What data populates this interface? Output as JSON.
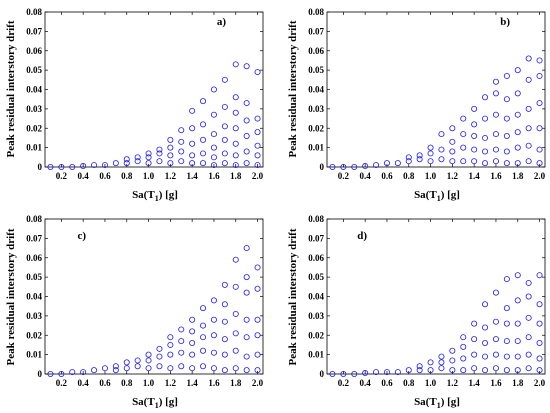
{
  "chart_data": [
    {
      "type": "scatter",
      "panel_label": "a)",
      "xlabel": "Sa(T",
      "xlabel_sub": "1",
      "xlabel_suffix": ") [g]",
      "ylabel": "Peak residual interstory drift",
      "xlim": [
        0.05,
        2.05
      ],
      "ylim": [
        0,
        0.08
      ],
      "xticks": [
        "0.2",
        "0.4",
        "0.6",
        "0.8",
        "1.0",
        "1.2",
        "1.4",
        "1.6",
        "1.8",
        "2.0"
      ],
      "yticks": [
        "0",
        "0.01",
        "0.02",
        "0.03",
        "0.04",
        "0.05",
        "0.06",
        "0.07",
        "0.08"
      ],
      "marker": "open-circle",
      "series": [
        {
          "x": [
            0.1,
            0.2,
            0.3,
            0.4,
            0.5,
            0.6,
            0.7,
            0.8,
            0.8,
            0.9,
            0.9,
            1.0,
            1.0,
            1.0,
            1.1,
            1.1,
            1.1,
            1.2,
            1.2,
            1.2,
            1.2,
            1.3,
            1.3,
            1.3,
            1.3,
            1.4,
            1.4,
            1.4,
            1.4,
            1.4,
            1.5,
            1.5,
            1.5,
            1.5,
            1.5,
            1.6,
            1.6,
            1.6,
            1.6,
            1.6,
            1.6,
            1.7,
            1.7,
            1.7,
            1.7,
            1.7,
            1.7,
            1.8,
            1.8,
            1.8,
            1.8,
            1.8,
            1.8,
            1.8,
            1.9,
            1.9,
            1.9,
            1.9,
            1.9,
            1.9,
            2.0,
            2.0,
            2.0,
            2.0,
            2.0,
            2.0
          ],
          "y": [
            0,
            0,
            0,
            0.0005,
            0.001,
            0.001,
            0.002,
            0.002,
            0.004,
            0.003,
            0.005,
            0.002,
            0.005,
            0.007,
            0.003,
            0.007,
            0.009,
            0.002,
            0.006,
            0.01,
            0.014,
            0.003,
            0.008,
            0.013,
            0.019,
            0.002,
            0.006,
            0.012,
            0.02,
            0.029,
            0.002,
            0.007,
            0.014,
            0.022,
            0.034,
            0.001,
            0.005,
            0.01,
            0.017,
            0.027,
            0.04,
            0.002,
            0.007,
            0.014,
            0.021,
            0.031,
            0.045,
            0.001,
            0.006,
            0.012,
            0.02,
            0.028,
            0.036,
            0.053,
            0.002,
            0.008,
            0.016,
            0.024,
            0.033,
            0.052,
            0.001,
            0.006,
            0.011,
            0.018,
            0.025,
            0.049
          ]
        }
      ]
    },
    {
      "type": "scatter",
      "panel_label": "b)",
      "xlabel": "Sa(T",
      "xlabel_sub": "1",
      "xlabel_suffix": ") [g]",
      "ylabel": "Peak residual interstory drift",
      "xlim": [
        0.05,
        2.05
      ],
      "ylim": [
        0,
        0.08
      ],
      "xticks": [
        "0.2",
        "0.4",
        "0.6",
        "0.8",
        "1.0",
        "1.2",
        "1.4",
        "1.6",
        "1.8",
        "2.0"
      ],
      "yticks": [
        "0",
        "0.01",
        "0.02",
        "0.03",
        "0.04",
        "0.05",
        "0.06",
        "0.07",
        "0.08"
      ],
      "marker": "open-circle",
      "series": [
        {
          "x": [
            0.1,
            0.2,
            0.3,
            0.4,
            0.5,
            0.6,
            0.7,
            0.8,
            0.8,
            0.9,
            0.9,
            1.0,
            1.0,
            1.0,
            1.1,
            1.1,
            1.1,
            1.2,
            1.2,
            1.2,
            1.2,
            1.3,
            1.3,
            1.3,
            1.3,
            1.4,
            1.4,
            1.4,
            1.4,
            1.4,
            1.5,
            1.5,
            1.5,
            1.5,
            1.5,
            1.6,
            1.6,
            1.6,
            1.6,
            1.6,
            1.6,
            1.7,
            1.7,
            1.7,
            1.7,
            1.7,
            1.7,
            1.8,
            1.8,
            1.8,
            1.8,
            1.8,
            1.8,
            1.9,
            1.9,
            1.9,
            1.9,
            1.9,
            1.9,
            2.0,
            2.0,
            2.0,
            2.0,
            2.0,
            2.0
          ],
          "y": [
            0,
            0,
            0,
            0.0005,
            0.001,
            0.002,
            0.002,
            0.003,
            0.005,
            0.004,
            0.006,
            0.003,
            0.007,
            0.01,
            0.004,
            0.009,
            0.017,
            0.003,
            0.008,
            0.013,
            0.02,
            0.003,
            0.01,
            0.017,
            0.025,
            0.003,
            0.009,
            0.016,
            0.022,
            0.03,
            0.002,
            0.008,
            0.015,
            0.025,
            0.036,
            0.003,
            0.009,
            0.017,
            0.027,
            0.038,
            0.044,
            0.002,
            0.008,
            0.016,
            0.025,
            0.035,
            0.047,
            0.002,
            0.01,
            0.018,
            0.027,
            0.038,
            0.05,
            0.003,
            0.011,
            0.02,
            0.03,
            0.045,
            0.056,
            0.002,
            0.009,
            0.02,
            0.033,
            0.047,
            0.055
          ]
        }
      ]
    },
    {
      "type": "scatter",
      "panel_label": "c)",
      "xlabel": "Sa(T",
      "xlabel_sub": "1",
      "xlabel_suffix": ") [g]",
      "ylabel": "Peak residual interstory drift",
      "xlim": [
        0.05,
        2.05
      ],
      "ylim": [
        0,
        0.08
      ],
      "xticks": [
        "0.2",
        "0.4",
        "0.6",
        "0.8",
        "1.0",
        "1.2",
        "1.4",
        "1.6",
        "1.8",
        "2.0"
      ],
      "yticks": [
        "0",
        "0.01",
        "0.02",
        "0.03",
        "0.04",
        "0.05",
        "0.06",
        "0.07",
        "0.08"
      ],
      "marker": "open-circle",
      "series": [
        {
          "x": [
            0.1,
            0.2,
            0.3,
            0.4,
            0.5,
            0.6,
            0.7,
            0.7,
            0.8,
            0.8,
            0.9,
            0.9,
            1.0,
            1.0,
            1.0,
            1.1,
            1.1,
            1.1,
            1.2,
            1.2,
            1.2,
            1.2,
            1.3,
            1.3,
            1.3,
            1.3,
            1.4,
            1.4,
            1.4,
            1.4,
            1.4,
            1.5,
            1.5,
            1.5,
            1.5,
            1.5,
            1.6,
            1.6,
            1.6,
            1.6,
            1.6,
            1.7,
            1.7,
            1.7,
            1.7,
            1.7,
            1.7,
            1.8,
            1.8,
            1.8,
            1.8,
            1.8,
            1.8,
            1.9,
            1.9,
            1.9,
            1.9,
            1.9,
            1.9,
            1.9,
            2.0,
            2.0,
            2.0,
            2.0,
            2.0,
            2.0
          ],
          "y": [
            0,
            0,
            0.001,
            0.001,
            0.002,
            0.003,
            0.002,
            0.004,
            0.003,
            0.006,
            0.004,
            0.007,
            0.003,
            0.007,
            0.01,
            0.004,
            0.009,
            0.013,
            0.003,
            0.01,
            0.015,
            0.019,
            0.004,
            0.011,
            0.017,
            0.023,
            0.003,
            0.01,
            0.016,
            0.022,
            0.028,
            0.004,
            0.012,
            0.019,
            0.025,
            0.034,
            0.003,
            0.011,
            0.02,
            0.028,
            0.038,
            0.002,
            0.01,
            0.018,
            0.027,
            0.036,
            0.046,
            0.003,
            0.012,
            0.021,
            0.031,
            0.045,
            0.059,
            0.002,
            0.009,
            0.019,
            0.028,
            0.042,
            0.05,
            0.065,
            0.002,
            0.01,
            0.02,
            0.028,
            0.044,
            0.055
          ]
        }
      ]
    },
    {
      "type": "scatter",
      "panel_label": "d)",
      "xlabel": "Sa(T",
      "xlabel_sub": "1",
      "xlabel_suffix": ") [g]",
      "ylabel": "Peak residual interstory drift",
      "xlim": [
        0.05,
        2.05
      ],
      "ylim": [
        0,
        0.08
      ],
      "xticks": [
        "0.2",
        "0.4",
        "0.6",
        "0.8",
        "1.0",
        "1.2",
        "1.4",
        "1.6",
        "1.8",
        "2.0"
      ],
      "yticks": [
        "0",
        "0.01",
        "0.02",
        "0.03",
        "0.04",
        "0.05",
        "0.06",
        "0.07",
        "0.08"
      ],
      "marker": "open-circle",
      "series": [
        {
          "x": [
            0.1,
            0.2,
            0.3,
            0.4,
            0.5,
            0.6,
            0.7,
            0.8,
            0.9,
            0.9,
            1.0,
            1.0,
            1.1,
            1.1,
            1.1,
            1.2,
            1.2,
            1.2,
            1.3,
            1.3,
            1.3,
            1.3,
            1.4,
            1.4,
            1.4,
            1.4,
            1.5,
            1.5,
            1.5,
            1.5,
            1.5,
            1.6,
            1.6,
            1.6,
            1.6,
            1.6,
            1.7,
            1.7,
            1.7,
            1.7,
            1.7,
            1.7,
            1.8,
            1.8,
            1.8,
            1.8,
            1.8,
            1.8,
            1.9,
            1.9,
            1.9,
            1.9,
            1.9,
            1.9,
            2.0,
            2.0,
            2.0,
            2.0,
            2.0,
            2.0
          ],
          "y": [
            0,
            0,
            0,
            0.0005,
            0.001,
            0.001,
            0.001,
            0.002,
            0.002,
            0.004,
            0.002,
            0.006,
            0.003,
            0.006,
            0.009,
            0.002,
            0.007,
            0.012,
            0.002,
            0.008,
            0.014,
            0.019,
            0.003,
            0.01,
            0.018,
            0.026,
            0.002,
            0.009,
            0.016,
            0.024,
            0.036,
            0.003,
            0.01,
            0.018,
            0.027,
            0.042,
            0.002,
            0.009,
            0.017,
            0.026,
            0.034,
            0.049,
            0.002,
            0.009,
            0.017,
            0.026,
            0.038,
            0.051,
            0.003,
            0.01,
            0.019,
            0.029,
            0.04,
            0.047,
            0.002,
            0.008,
            0.016,
            0.026,
            0.036,
            0.051
          ]
        }
      ]
    }
  ]
}
